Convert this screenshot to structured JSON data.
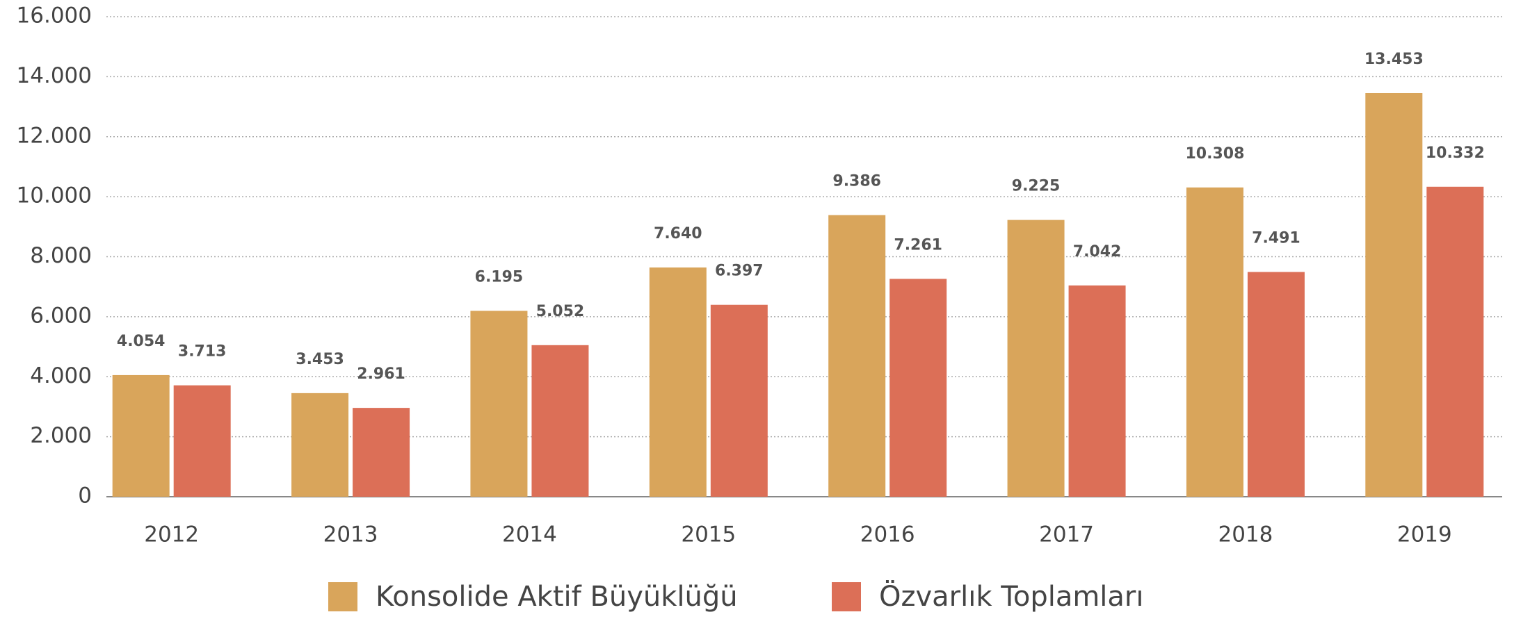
{
  "chart_data": {
    "type": "bar",
    "categories": [
      "2012",
      "2013",
      "2014",
      "2015",
      "2016",
      "2017",
      "2018",
      "2019"
    ],
    "series": [
      {
        "name": "Konsolide Aktif Büyüklüğü",
        "color": "#d9a55b",
        "values": [
          4054,
          3453,
          6195,
          7640,
          9386,
          9225,
          10308,
          13453
        ],
        "value_labels": [
          "4.054",
          "3.453",
          "6.195",
          "7.640",
          "9.386",
          "9.225",
          "10.308",
          "13.453"
        ]
      },
      {
        "name": "Özvarlık Toplamları",
        "color": "#dc6f57",
        "values": [
          3713,
          2961,
          5052,
          6397,
          7261,
          7042,
          7491,
          10332
        ],
        "value_labels": [
          "3.713",
          "2.961",
          "5.052",
          "6.397",
          "7.261",
          "7.042",
          "7.491",
          "10.332"
        ]
      }
    ],
    "ylim": [
      0,
      16000
    ],
    "yticks": [
      0,
      {
        "value": 2000,
        "label": "2.000"
      },
      {
        "value": 4000,
        "label": "4.000"
      },
      {
        "value": 6000,
        "label": "6.000"
      },
      {
        "value": 8000,
        "label": "8.000"
      },
      {
        "value": 10000,
        "label": "10.000"
      },
      {
        "value": 12000,
        "label": "12.000"
      },
      {
        "value": 14000,
        "label": "14.000"
      },
      {
        "value": 16000,
        "label": "16.000"
      }
    ],
    "grid": true,
    "legend": "bottom"
  }
}
